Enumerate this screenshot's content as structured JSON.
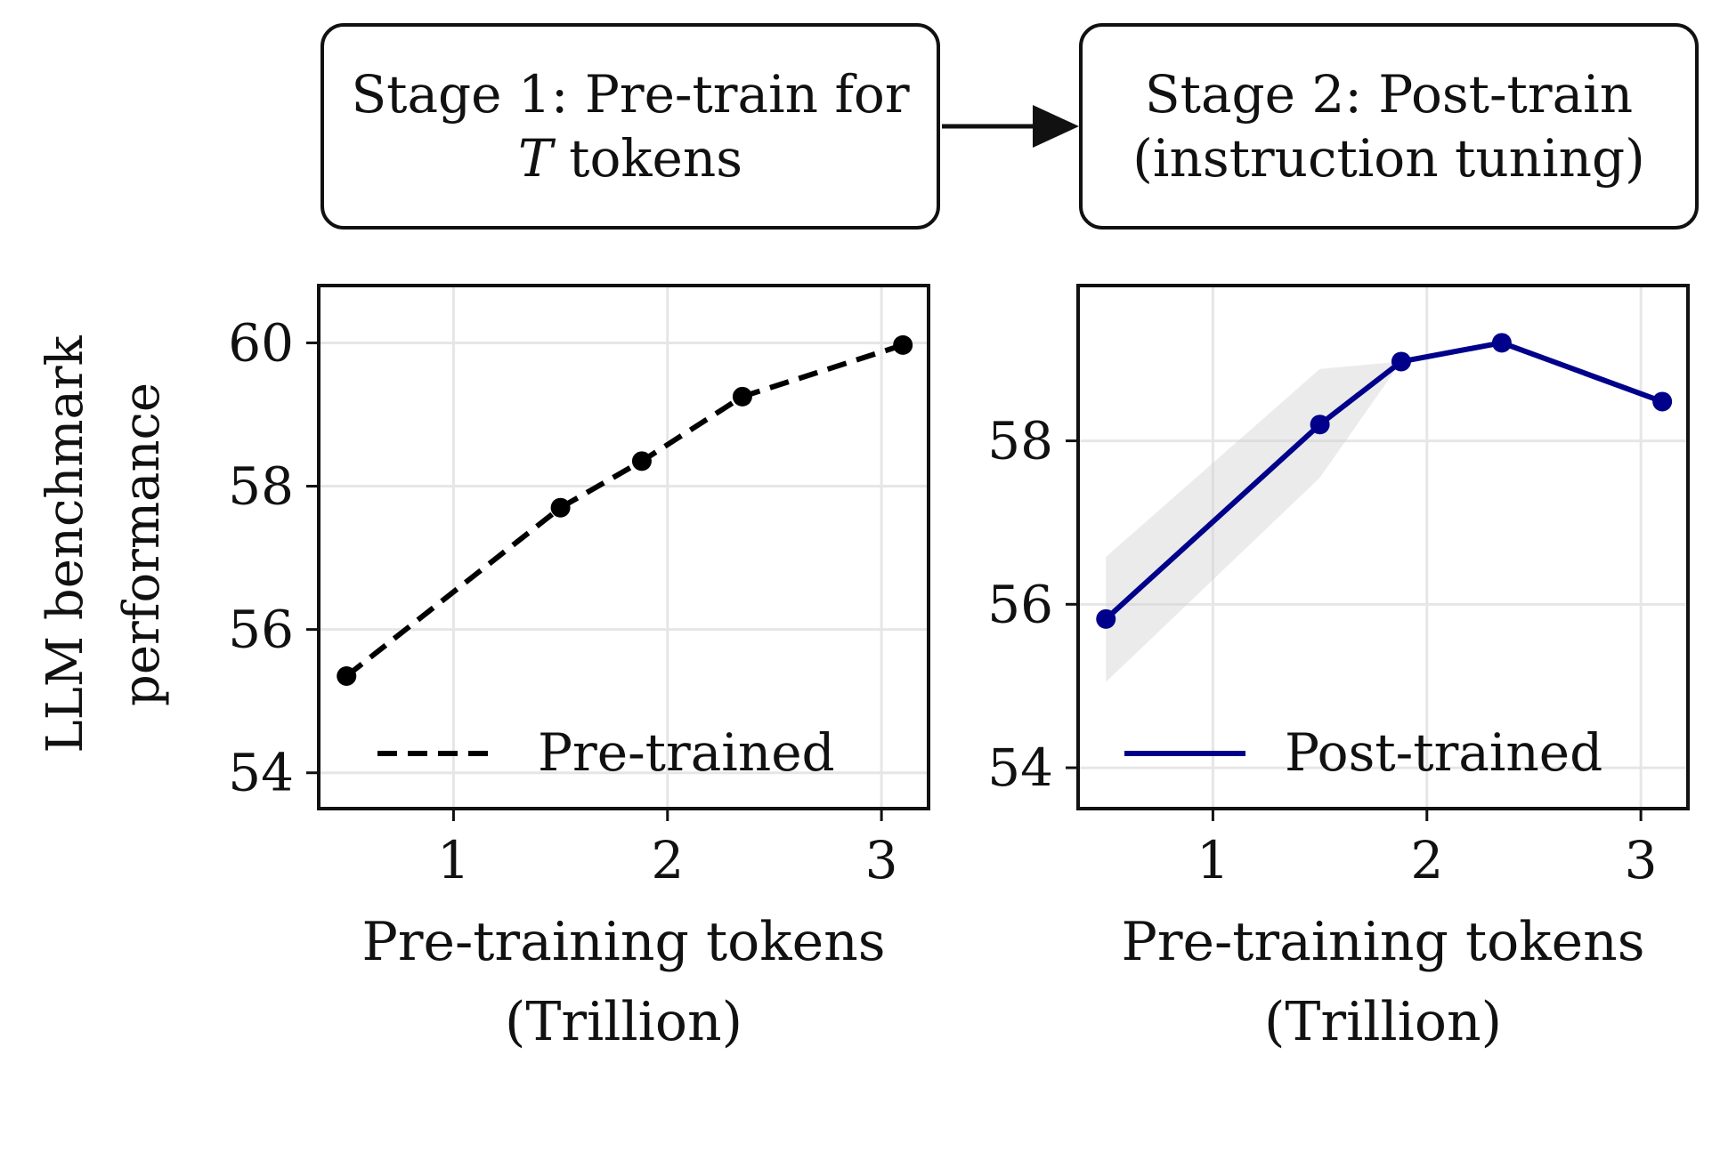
{
  "stages": [
    {
      "line1": "Stage 1: Pre-train for",
      "line2_var": "T",
      "line2_rest": " tokens"
    },
    {
      "line1": "Stage 2: Post-train",
      "line2": "(instruction tuning)"
    }
  ],
  "shared_ylabel": [
    "LLM benchmark",
    "performance"
  ],
  "chart_data": [
    {
      "type": "line",
      "xlabel": [
        "Pre-training tokens",
        "(Trillion)"
      ],
      "ylabel": "LLM benchmark performance",
      "xlim": [
        0.37,
        3.22
      ],
      "ylim": [
        53.5,
        60.8
      ],
      "xticks": [
        1,
        2,
        3
      ],
      "xtick_labels": [
        "1",
        "2",
        "3"
      ],
      "yticks": [
        54,
        56,
        58,
        60
      ],
      "ytick_labels": [
        "54",
        "56",
        "58",
        "60"
      ],
      "grid": true,
      "legend": {
        "position": "bottom-right",
        "entries": [
          "Pre-trained"
        ]
      },
      "series": [
        {
          "name": "Pre-trained",
          "color": "#000000",
          "dash": "dashed",
          "x": [
            0.5,
            1.5,
            1.88,
            2.35,
            3.1
          ],
          "y": [
            55.35,
            57.7,
            58.35,
            59.25,
            59.97
          ]
        }
      ]
    },
    {
      "type": "line",
      "xlabel": [
        "Pre-training tokens",
        "(Trillion)"
      ],
      "xlim": [
        0.37,
        3.22
      ],
      "ylim": [
        53.5,
        59.9
      ],
      "xticks": [
        1,
        2,
        3
      ],
      "xtick_labels": [
        "1",
        "2",
        "3"
      ],
      "yticks": [
        54,
        56,
        58
      ],
      "ytick_labels": [
        "54",
        "56",
        "58"
      ],
      "grid": true,
      "legend": {
        "position": "bottom-right",
        "entries": [
          "Post-trained"
        ]
      },
      "series": [
        {
          "name": "Post-trained",
          "color": "#00008b",
          "dash": "solid",
          "x": [
            0.5,
            1.5,
            1.88,
            2.35,
            3.1
          ],
          "y": [
            55.82,
            58.2,
            58.97,
            59.2,
            58.48
          ],
          "band_color": "#d3d3d3",
          "band_low": [
            55.05,
            57.55,
            58.97,
            59.2,
            58.48
          ],
          "band_high": [
            56.58,
            58.88,
            58.97,
            59.2,
            58.48
          ]
        }
      ]
    }
  ]
}
